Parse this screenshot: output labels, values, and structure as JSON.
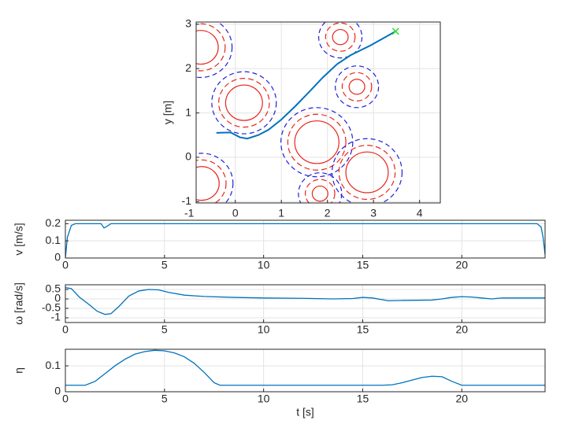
{
  "chart_data": [
    {
      "type": "path",
      "ylabel": "y [m]",
      "xlim": [
        -0.85,
        4.45
      ],
      "ylim": [
        -1.03,
        3.05
      ],
      "xticks": [
        -1,
        0,
        1,
        2,
        3,
        4
      ],
      "yticks": [
        -1,
        0,
        1,
        2,
        3
      ],
      "grid": true,
      "obstacles": {
        "x": [
          -0.75,
          0.19,
          2.28,
          2.64,
          1.77,
          2.86,
          -0.73,
          1.84
        ],
        "y": [
          2.48,
          1.23,
          2.71,
          1.59,
          0.34,
          -0.34,
          -0.59,
          -0.82
        ],
        "r_inner": [
          0.38,
          0.4,
          0.17,
          0.17,
          0.48,
          0.46,
          0.38,
          0.17
        ],
        "r_mid": [
          0.53,
          0.55,
          0.32,
          0.32,
          0.63,
          0.61,
          0.53,
          0.32
        ],
        "r_outer": [
          0.68,
          0.7,
          0.47,
          0.47,
          0.78,
          0.76,
          0.68,
          0.47
        ],
        "inner_color": "#e8251c",
        "mid_color": "#e8251c",
        "outer_color": "#2020d8"
      },
      "path": {
        "color": "#0072bd",
        "x": [
          -0.41,
          -0.1,
          0.1,
          0.26,
          0.5,
          0.72,
          1.0,
          1.3,
          1.6,
          1.9,
          2.21,
          2.5,
          2.93,
          3.48
        ],
        "y": [
          0.55,
          0.56,
          0.45,
          0.42,
          0.5,
          0.62,
          0.85,
          1.15,
          1.47,
          1.8,
          2.1,
          2.3,
          2.52,
          2.84
        ]
      },
      "goal": {
        "x": 3.48,
        "y": 2.84,
        "color": "#33dd33"
      }
    },
    {
      "type": "line",
      "ylabel": "v [m/s]",
      "xlim": [
        0,
        24.2
      ],
      "ylim": [
        0,
        0.22
      ],
      "xticks": [
        0,
        5,
        10,
        15,
        20
      ],
      "yticks": [
        0,
        0.1,
        0.2
      ],
      "grid": true,
      "x": [
        0,
        0.1,
        0.3,
        0.5,
        1.8,
        1.95,
        2.1,
        2.3,
        23.8,
        24.0,
        24.1,
        24.2
      ],
      "series": [
        {
          "color": "#0072bd",
          "values": [
            0,
            0.12,
            0.19,
            0.2,
            0.2,
            0.175,
            0.185,
            0.2,
            0.2,
            0.18,
            0.12,
            0.02
          ]
        }
      ]
    },
    {
      "type": "line",
      "ylabel": "ω [rad/s]",
      "xlim": [
        0,
        24.2
      ],
      "ylim": [
        -1.25,
        0.75
      ],
      "xticks": [
        0,
        5,
        10,
        15,
        20
      ],
      "yticks": [
        -1,
        -0.5,
        0,
        0.5
      ],
      "grid": true,
      "x": [
        0,
        0.3,
        0.7,
        1.2,
        1.6,
        2.0,
        2.3,
        2.7,
        3.2,
        3.7,
        4.2,
        4.7,
        5.2,
        6,
        7,
        8.5,
        10,
        12,
        13.5,
        14.5,
        15,
        15.5,
        16.3,
        17,
        18.5,
        19,
        19.5,
        20,
        20.5,
        21,
        21.5,
        22,
        23,
        24.2
      ],
      "series": [
        {
          "color": "#0072bd",
          "values": [
            0.6,
            0.55,
            0.1,
            -0.3,
            -0.65,
            -0.82,
            -0.78,
            -0.4,
            0.15,
            0.42,
            0.5,
            0.48,
            0.35,
            0.2,
            0.13,
            0.08,
            0.05,
            0.03,
            0.0,
            0.02,
            0.08,
            0.05,
            -0.1,
            -0.08,
            -0.06,
            0.0,
            0.08,
            0.12,
            0.1,
            0.05,
            0.0,
            0.05,
            0.05,
            0.05
          ]
        }
      ]
    },
    {
      "type": "line",
      "ylabel": "η",
      "xlabel": "t [s]",
      "xlim": [
        0,
        24.2
      ],
      "ylim": [
        0,
        0.164
      ],
      "xticks": [
        0,
        5,
        10,
        15,
        20
      ],
      "yticks": [
        0,
        0.1
      ],
      "grid": true,
      "x": [
        0,
        1,
        1.5,
        2,
        2.5,
        3,
        3.5,
        4,
        4.5,
        5,
        5.5,
        6,
        6.5,
        7,
        7.5,
        7.8,
        16,
        16.5,
        17,
        17.5,
        18,
        18.5,
        19,
        19.5,
        20,
        24.2
      ],
      "series": [
        {
          "color": "#0072bd",
          "values": [
            0.025,
            0.025,
            0.04,
            0.07,
            0.1,
            0.125,
            0.145,
            0.155,
            0.16,
            0.158,
            0.15,
            0.135,
            0.11,
            0.075,
            0.035,
            0.025,
            0.025,
            0.027,
            0.035,
            0.045,
            0.055,
            0.06,
            0.058,
            0.04,
            0.025,
            0.025
          ]
        }
      ]
    }
  ]
}
